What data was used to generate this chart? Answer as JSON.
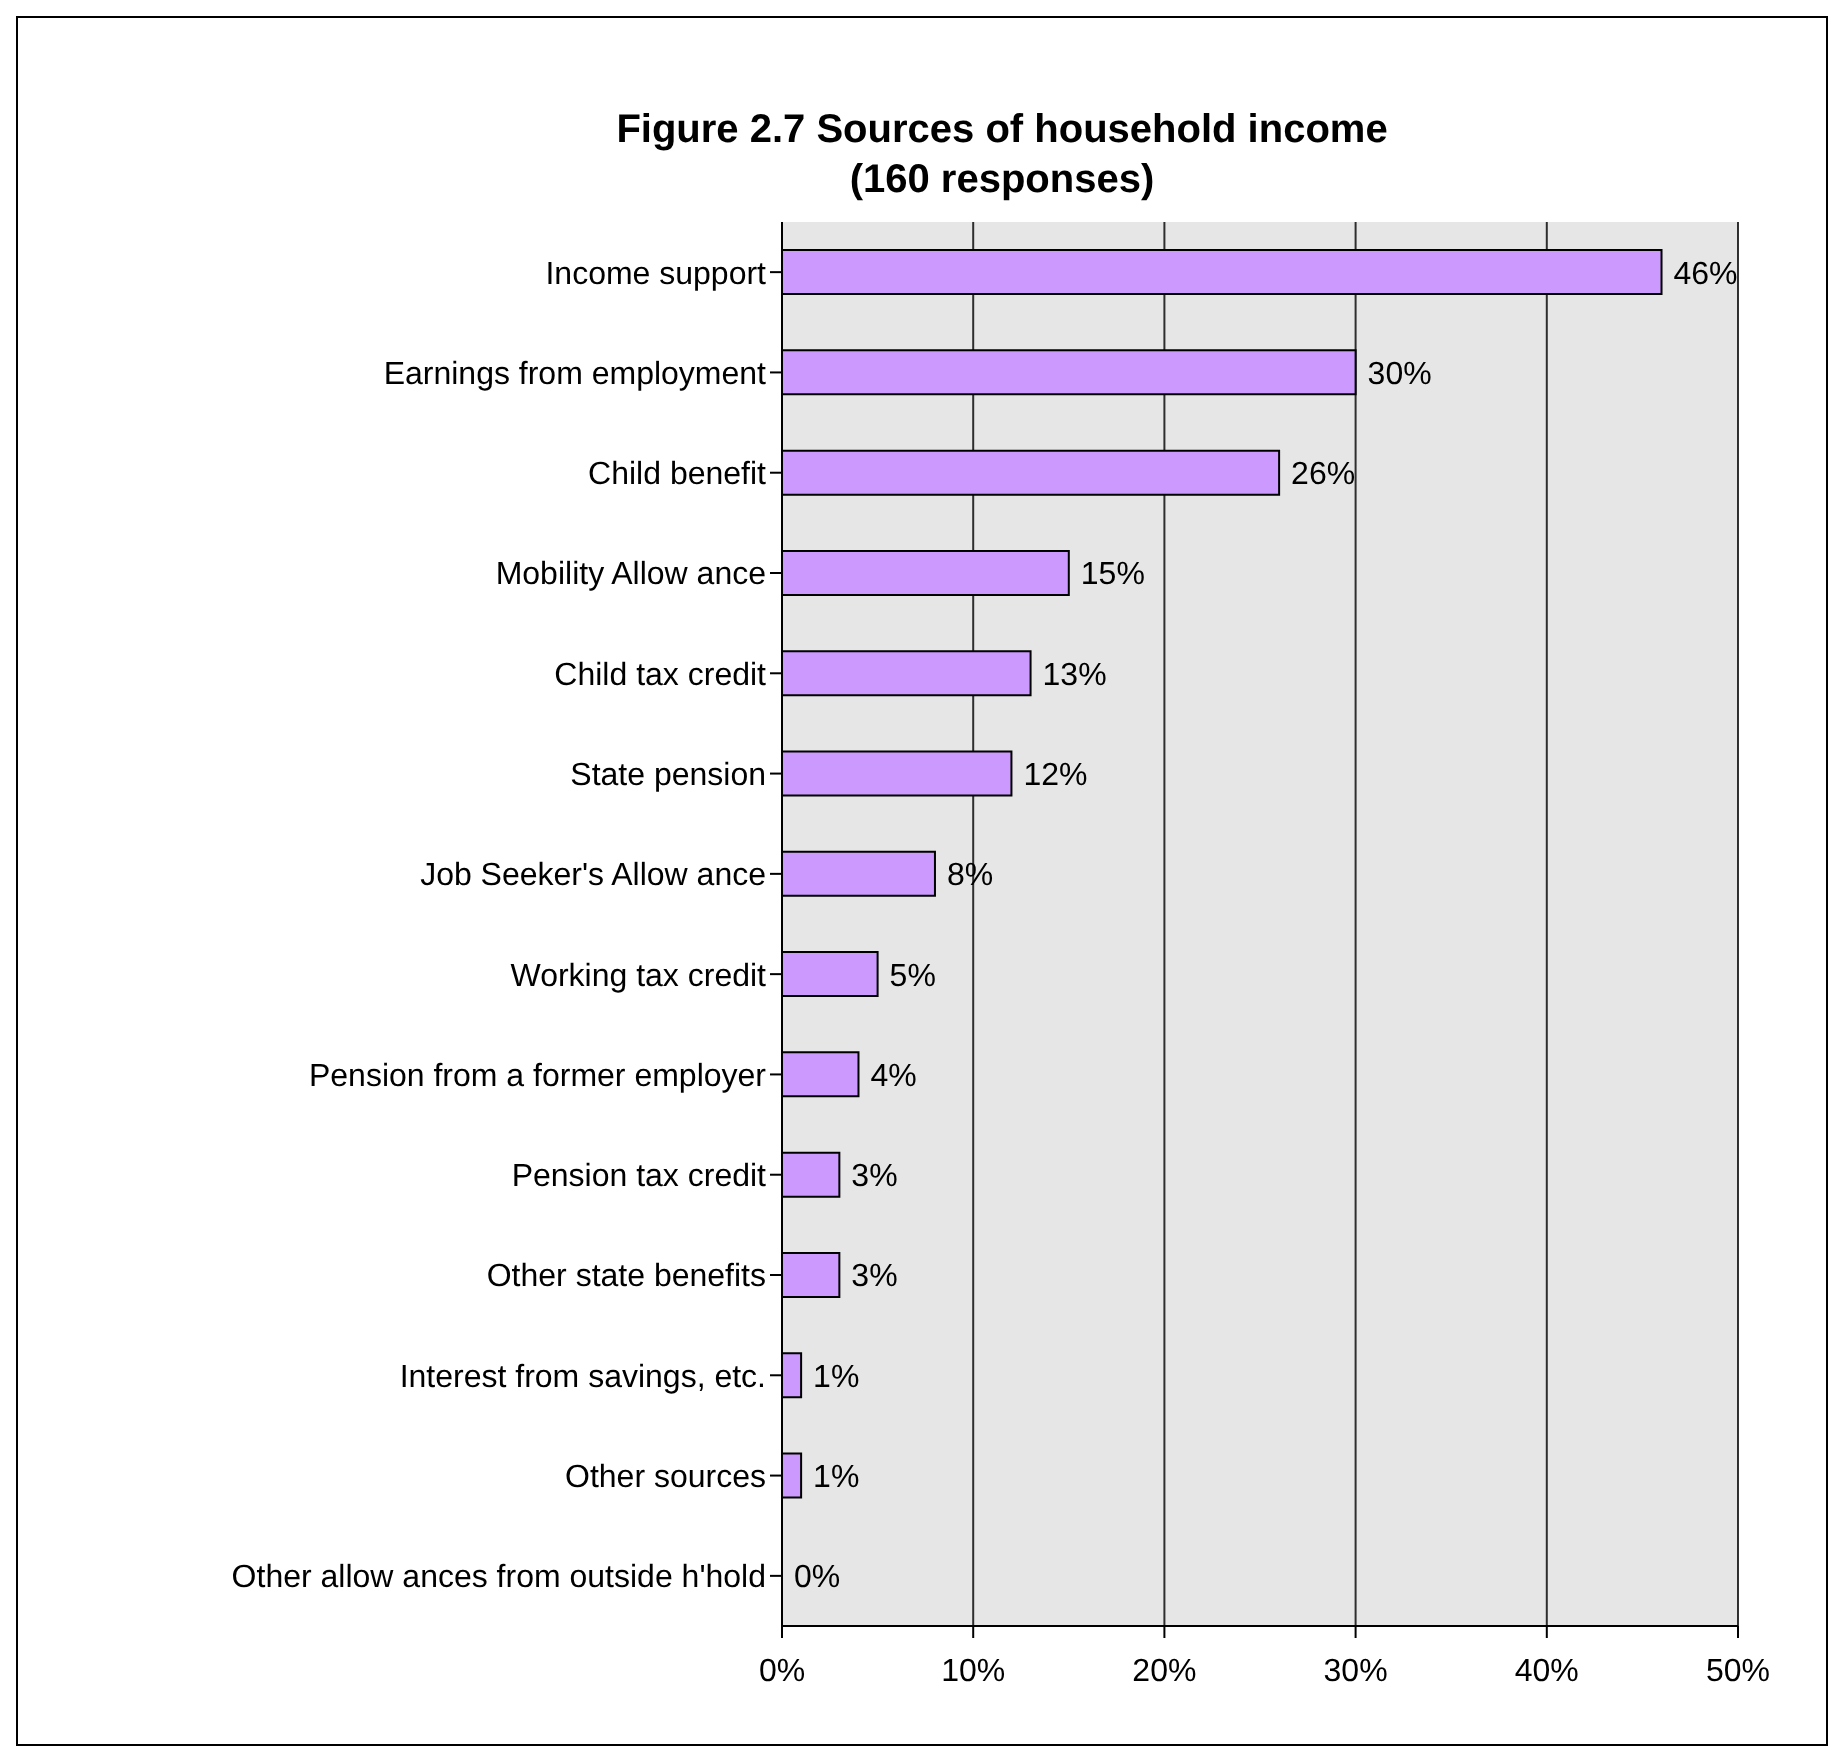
{
  "chart_data": {
    "type": "bar",
    "orientation": "horizontal",
    "title": "Figure 2.7 Sources of household income\n(160 responses)",
    "categories": [
      "Income support",
      "Earnings from employment",
      "Child benefit",
      "Mobility Allow ance",
      "Child tax credit",
      "State pension",
      "Job Seeker's Allow ance",
      "Working tax credit",
      "Pension from a former employer",
      "Pension tax credit",
      "Other state benefits",
      "Interest from savings, etc.",
      "Other sources",
      "Other allow ances from outside h'hold"
    ],
    "values": [
      46,
      30,
      26,
      15,
      13,
      12,
      8,
      5,
      4,
      3,
      3,
      1,
      1,
      0
    ],
    "value_labels": [
      "46%",
      "30%",
      "26%",
      "15%",
      "13%",
      "12%",
      "8%",
      "5%",
      "4%",
      "3%",
      "3%",
      "1%",
      "1%",
      "0%"
    ],
    "color": "#cc99ff",
    "xlim": [
      0,
      50
    ],
    "xticks": [
      {
        "value": 0,
        "label": "0%"
      },
      {
        "value": 10,
        "label": "10%"
      },
      {
        "value": 20,
        "label": "20%"
      },
      {
        "value": 30,
        "label": "30%"
      },
      {
        "value": 40,
        "label": "40%"
      },
      {
        "value": 50,
        "label": "50%"
      }
    ],
    "grid": "x"
  }
}
